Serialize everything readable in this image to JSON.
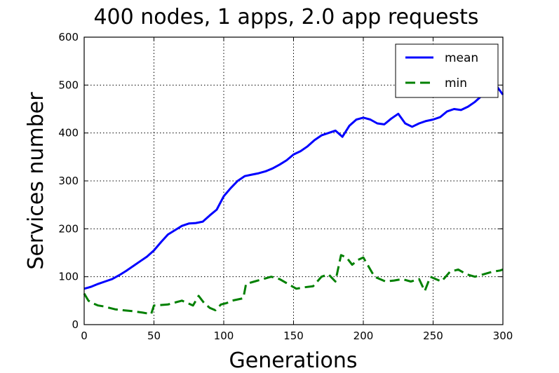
{
  "chart_data": {
    "type": "line",
    "title": "400 nodes, 1 apps, 2.0 app requests",
    "xlabel": "Generations",
    "ylabel": "Services number",
    "xlim": [
      0,
      300
    ],
    "ylim": [
      0,
      600
    ],
    "x_ticks": [
      0,
      50,
      100,
      150,
      200,
      250,
      300
    ],
    "y_ticks": [
      0,
      100,
      200,
      300,
      400,
      500,
      600
    ],
    "grid": true,
    "legend_position": "top-right",
    "series": [
      {
        "name": "mean",
        "color": "#0000ff",
        "line_style": "solid",
        "points": [
          [
            0,
            75
          ],
          [
            5,
            79
          ],
          [
            10,
            85
          ],
          [
            15,
            90
          ],
          [
            20,
            95
          ],
          [
            25,
            103
          ],
          [
            30,
            112
          ],
          [
            35,
            122
          ],
          [
            40,
            132
          ],
          [
            45,
            142
          ],
          [
            50,
            155
          ],
          [
            55,
            172
          ],
          [
            60,
            188
          ],
          [
            65,
            197
          ],
          [
            70,
            206
          ],
          [
            75,
            211
          ],
          [
            80,
            212
          ],
          [
            85,
            215
          ],
          [
            90,
            228
          ],
          [
            95,
            240
          ],
          [
            100,
            268
          ],
          [
            105,
            285
          ],
          [
            110,
            300
          ],
          [
            115,
            310
          ],
          [
            120,
            313
          ],
          [
            125,
            316
          ],
          [
            130,
            320
          ],
          [
            135,
            326
          ],
          [
            140,
            334
          ],
          [
            145,
            343
          ],
          [
            150,
            355
          ],
          [
            155,
            362
          ],
          [
            160,
            372
          ],
          [
            165,
            385
          ],
          [
            170,
            395
          ],
          [
            175,
            400
          ],
          [
            180,
            405
          ],
          [
            185,
            392
          ],
          [
            190,
            415
          ],
          [
            195,
            428
          ],
          [
            200,
            432
          ],
          [
            205,
            428
          ],
          [
            210,
            420
          ],
          [
            215,
            418
          ],
          [
            220,
            430
          ],
          [
            225,
            440
          ],
          [
            230,
            420
          ],
          [
            235,
            413
          ],
          [
            240,
            420
          ],
          [
            245,
            425
          ],
          [
            250,
            428
          ],
          [
            255,
            433
          ],
          [
            260,
            445
          ],
          [
            265,
            450
          ],
          [
            270,
            448
          ],
          [
            275,
            455
          ],
          [
            280,
            465
          ],
          [
            285,
            478
          ],
          [
            290,
            490
          ],
          [
            295,
            500
          ],
          [
            300,
            480
          ]
        ]
      },
      {
        "name": "min",
        "color": "#008000",
        "line_style": "dashed",
        "points": [
          [
            0,
            65
          ],
          [
            3,
            50
          ],
          [
            6,
            45
          ],
          [
            10,
            40
          ],
          [
            14,
            38
          ],
          [
            18,
            35
          ],
          [
            22,
            32
          ],
          [
            28,
            30
          ],
          [
            35,
            28
          ],
          [
            42,
            25
          ],
          [
            48,
            22
          ],
          [
            50,
            40
          ],
          [
            60,
            42
          ],
          [
            70,
            50
          ],
          [
            78,
            40
          ],
          [
            82,
            60
          ],
          [
            86,
            45
          ],
          [
            90,
            35
          ],
          [
            94,
            30
          ],
          [
            98,
            42
          ],
          [
            102,
            45
          ],
          [
            106,
            50
          ],
          [
            114,
            55
          ],
          [
            116,
            85
          ],
          [
            122,
            90
          ],
          [
            128,
            95
          ],
          [
            134,
            100
          ],
          [
            140,
            95
          ],
          [
            146,
            85
          ],
          [
            152,
            75
          ],
          [
            158,
            78
          ],
          [
            164,
            80
          ],
          [
            170,
            100
          ],
          [
            175,
            105
          ],
          [
            180,
            90
          ],
          [
            184,
            145
          ],
          [
            188,
            140
          ],
          [
            192,
            125
          ],
          [
            196,
            135
          ],
          [
            200,
            140
          ],
          [
            204,
            120
          ],
          [
            208,
            100
          ],
          [
            212,
            95
          ],
          [
            216,
            90
          ],
          [
            222,
            92
          ],
          [
            228,
            95
          ],
          [
            234,
            90
          ],
          [
            240,
            95
          ],
          [
            244,
            70
          ],
          [
            248,
            100
          ],
          [
            252,
            95
          ],
          [
            256,
            90
          ],
          [
            262,
            110
          ],
          [
            268,
            115
          ],
          [
            274,
            105
          ],
          [
            280,
            100
          ],
          [
            286,
            105
          ],
          [
            292,
            110
          ],
          [
            298,
            113
          ],
          [
            300,
            115
          ]
        ]
      }
    ]
  }
}
